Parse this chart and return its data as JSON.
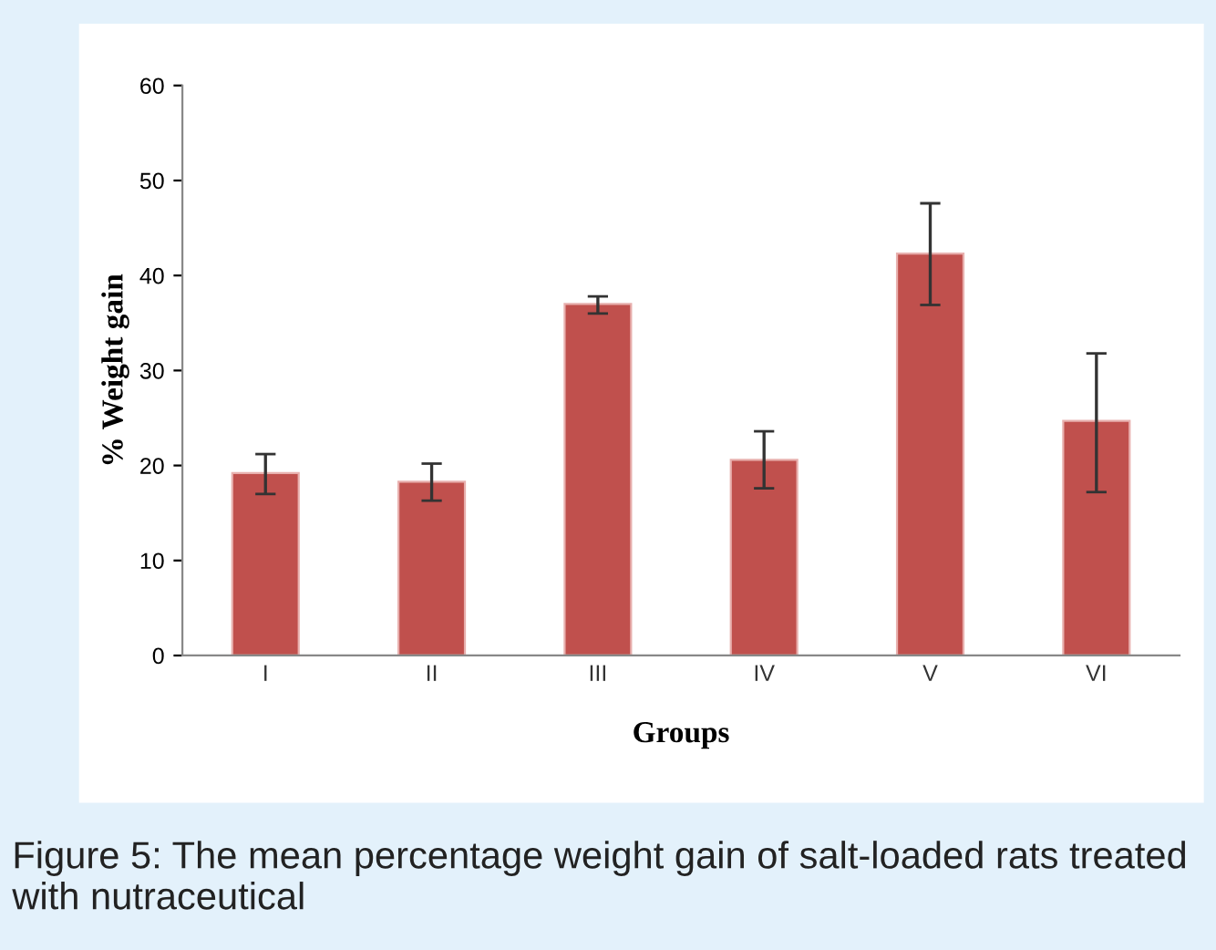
{
  "chart_data": {
    "type": "bar",
    "xlabel": "Groups",
    "ylabel": "% Weight gain",
    "categories": [
      "I",
      "II",
      "III",
      "IV",
      "V",
      "VI"
    ],
    "values": [
      19.2,
      18.3,
      37.0,
      20.6,
      42.3,
      24.7
    ],
    "errors": [
      [
        17.0,
        21.2
      ],
      [
        16.3,
        20.2
      ],
      [
        36.0,
        37.8
      ],
      [
        17.6,
        23.6
      ],
      [
        36.9,
        47.6
      ],
      [
        17.2,
        31.8
      ]
    ],
    "color": "#c0504d",
    "ylim": [
      0,
      60
    ],
    "yticks": [
      0,
      10,
      20,
      30,
      40,
      50,
      60
    ],
    "grid": false,
    "legend": false,
    "annotations": [
      "Figure 5: The mean percentage weight gain of salt-loaded rats treated with nutraceutical"
    ]
  }
}
